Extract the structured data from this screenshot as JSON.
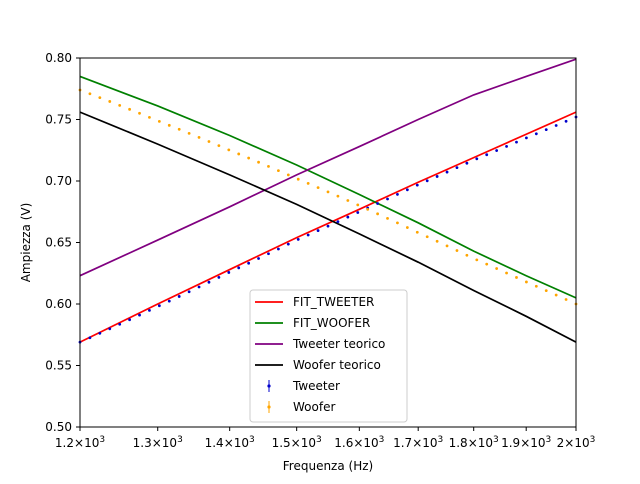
{
  "chart_data": {
    "type": "line",
    "title": "",
    "xlabel": "Frequenza (Hz)",
    "ylabel": "Ampiezza (V)",
    "xscale": "log",
    "xlim": [
      1200,
      2000
    ],
    "ylim": [
      0.5,
      0.8
    ],
    "grid": false,
    "legend_position": "lower-center",
    "x_ticks": [
      {
        "value": 1200,
        "base": "1.2",
        "exp": "3"
      },
      {
        "value": 1300,
        "base": "1.3",
        "exp": "3"
      },
      {
        "value": 1400,
        "base": "1.4",
        "exp": "3"
      },
      {
        "value": 1500,
        "base": "1.5",
        "exp": "3"
      },
      {
        "value": 1600,
        "base": "1.6",
        "exp": "3"
      },
      {
        "value": 1700,
        "base": "1.7",
        "exp": "3"
      },
      {
        "value": 1800,
        "base": "1.8",
        "exp": "3"
      },
      {
        "value": 1900,
        "base": "1.9",
        "exp": "3"
      },
      {
        "value": 2000,
        "base": "2",
        "exp": "3"
      }
    ],
    "y_ticks": [
      "0.50",
      "0.55",
      "0.60",
      "0.65",
      "0.70",
      "0.75",
      "0.80"
    ],
    "series": [
      {
        "name": "FIT_TWEETER",
        "kind": "line",
        "color": "#ff0000",
        "x": [
          1200,
          1300,
          1400,
          1500,
          1600,
          1700,
          1800,
          1900,
          2000
        ],
        "y": [
          0.569,
          0.6,
          0.628,
          0.654,
          0.677,
          0.699,
          0.719,
          0.738,
          0.756
        ]
      },
      {
        "name": "FIT_WOOFER",
        "kind": "line",
        "color": "#008000",
        "x": [
          1200,
          1300,
          1400,
          1500,
          1600,
          1700,
          1800,
          1900,
          2000
        ],
        "y": [
          0.785,
          0.761,
          0.737,
          0.713,
          0.689,
          0.666,
          0.643,
          0.623,
          0.605
        ]
      },
      {
        "name": "Tweeter teorico",
        "kind": "line",
        "color": "#800080",
        "x": [
          1200,
          1300,
          1400,
          1500,
          1600,
          1700,
          1800,
          1900,
          2000
        ],
        "y": [
          0.623,
          0.652,
          0.679,
          0.705,
          0.728,
          0.75,
          0.77,
          0.785,
          0.799
        ]
      },
      {
        "name": "Woofer teorico",
        "kind": "line",
        "color": "#000000",
        "x": [
          1200,
          1300,
          1400,
          1500,
          1600,
          1700,
          1800,
          1900,
          2000
        ],
        "y": [
          0.756,
          0.73,
          0.705,
          0.681,
          0.657,
          0.634,
          0.611,
          0.59,
          0.569
        ]
      },
      {
        "name": "Tweeter",
        "kind": "points",
        "color": "#0000cc",
        "x": [
          1200,
          1300,
          1400,
          1500,
          1600,
          1700,
          1800,
          1900,
          2000
        ],
        "y": [
          0.569,
          0.598,
          0.626,
          0.652,
          0.675,
          0.697,
          0.717,
          0.735,
          0.752
        ]
      },
      {
        "name": "Woofer",
        "kind": "points",
        "color": "#ffa500",
        "x": [
          1200,
          1300,
          1400,
          1500,
          1600,
          1700,
          1800,
          1900,
          2000
        ],
        "y": [
          0.774,
          0.749,
          0.725,
          0.702,
          0.68,
          0.658,
          0.637,
          0.618,
          0.6
        ]
      }
    ]
  }
}
